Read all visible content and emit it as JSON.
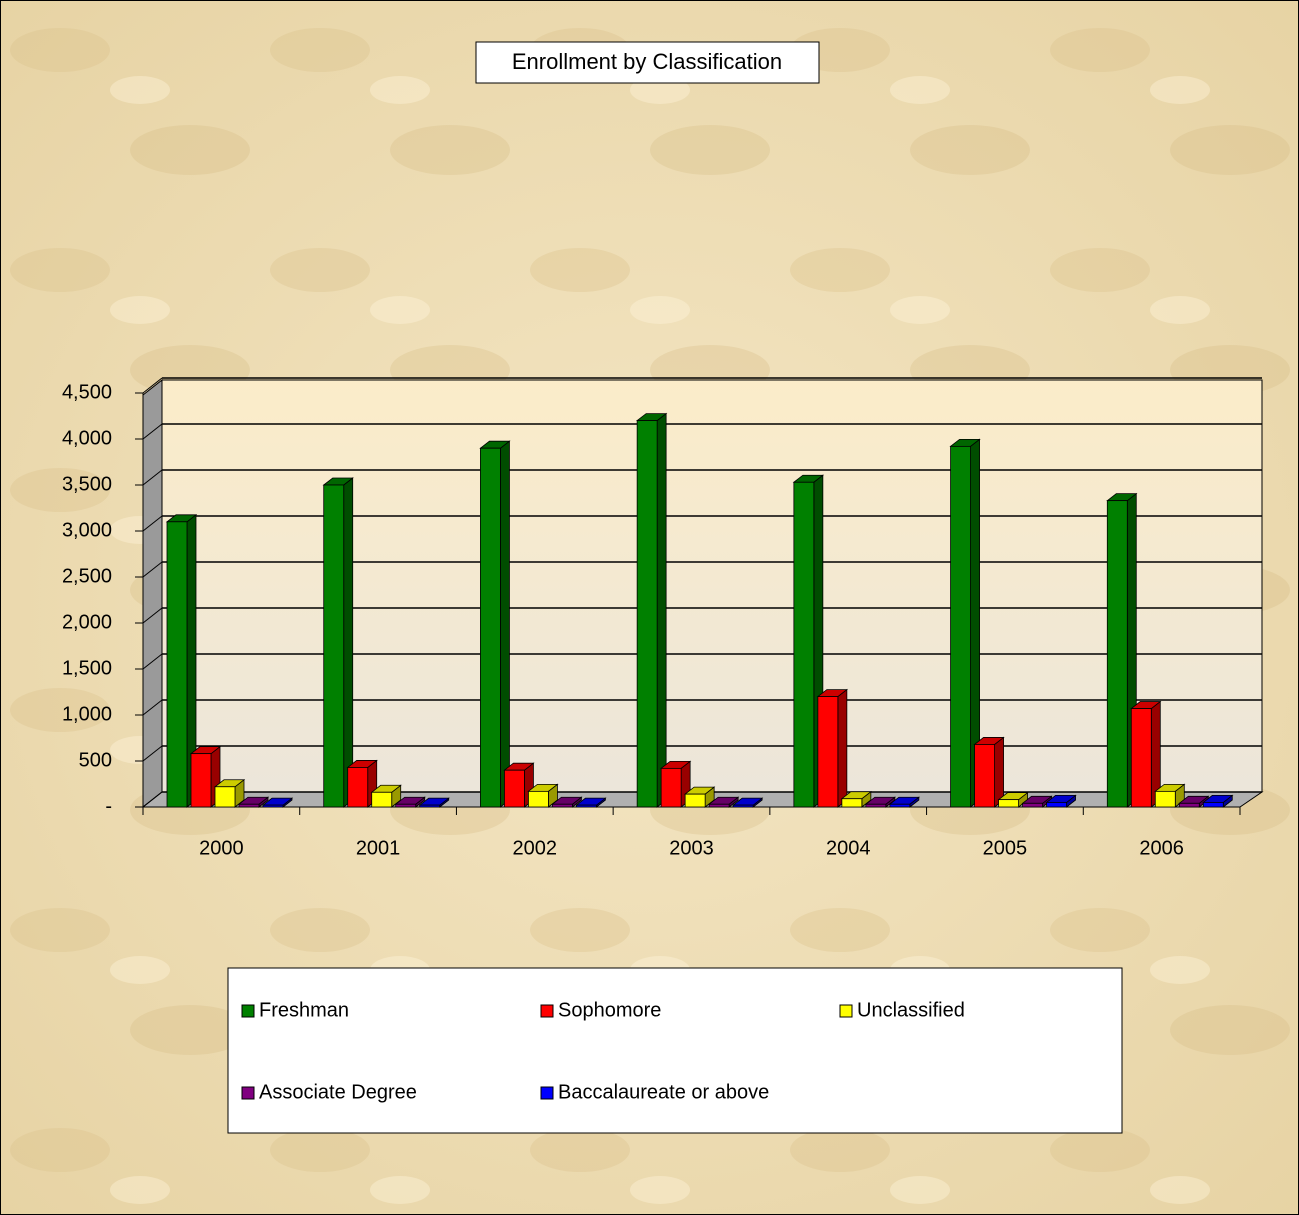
{
  "chart_data": {
    "type": "bar3d",
    "title": "Enrollment by Classification",
    "categories": [
      "2000",
      "2001",
      "2002",
      "2003",
      "2004",
      "2005",
      "2006"
    ],
    "series": [
      {
        "name": "Freshman",
        "color": "#008000",
        "values": [
          3100,
          3500,
          3900,
          4200,
          3530,
          3920,
          3330
        ]
      },
      {
        "name": "Sophomore",
        "color": "#ff0000",
        "values": [
          580,
          430,
          400,
          420,
          1200,
          680,
          1070
        ]
      },
      {
        "name": "Unclassified",
        "color": "#ffff00",
        "values": [
          220,
          160,
          170,
          140,
          90,
          80,
          170
        ]
      },
      {
        "name": "Associate Degree",
        "color": "#800080",
        "values": [
          30,
          30,
          30,
          30,
          30,
          40,
          40
        ]
      },
      {
        "name": "Baccalaureate or above",
        "color": "#0000ff",
        "values": [
          20,
          20,
          20,
          20,
          30,
          50,
          50
        ]
      }
    ],
    "ylim": [
      0,
      4500
    ],
    "yticks": [
      {
        "value": 0,
        "label": "-"
      },
      500,
      {
        "value": 1000,
        "label": "1,000"
      },
      {
        "value": 1500,
        "label": "1,500"
      },
      {
        "value": 2000,
        "label": "2,000"
      },
      {
        "value": 2500,
        "label": "2,500"
      },
      {
        "value": 3000,
        "label": "3,000"
      },
      {
        "value": 3500,
        "label": "3,500"
      },
      {
        "value": 4000,
        "label": "4,000"
      },
      {
        "value": 4500,
        "label": "4,500"
      }
    ],
    "grid": true
  }
}
